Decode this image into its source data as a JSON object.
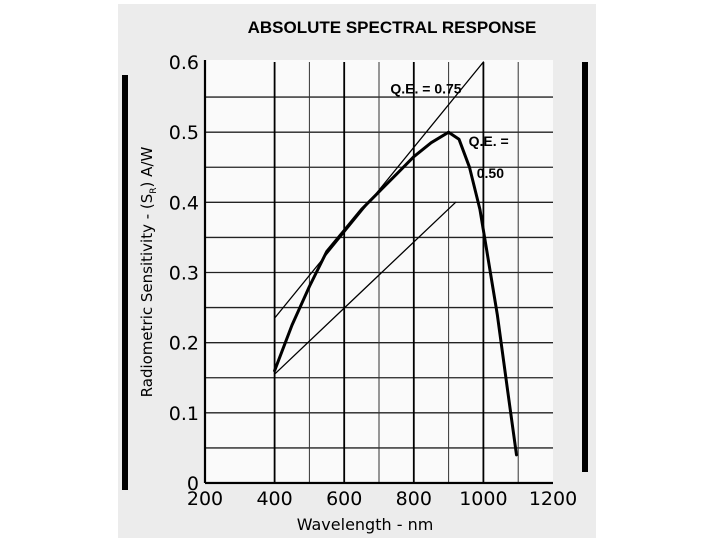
{
  "chart_data": {
    "type": "line",
    "title": "ABSOLUTE SPECTRAL RESPONSE",
    "xlabel": "Wavelength - nm",
    "ylabel": "Radiometric Sensitivity - (S",
    "ylabel_sub": "R",
    "ylabel_suffix": ") A/W",
    "xlim": [
      200,
      1200
    ],
    "ylim": [
      0,
      0.6
    ],
    "x_ticks": [
      "200",
      "400",
      "600",
      "800",
      "1000",
      "1200"
    ],
    "y_ticks": [
      "0",
      "0.1",
      "0.2",
      "0.3",
      "0.4",
      "0.5",
      "0.6"
    ],
    "grid": true,
    "series": [
      {
        "role": "response-curve",
        "x": [
          400,
          450,
          500,
          550,
          600,
          650,
          700,
          750,
          800,
          850,
          900,
          930,
          960,
          990,
          1010,
          1040,
          1070,
          1095
        ],
        "y": [
          0.16,
          0.225,
          0.28,
          0.33,
          0.36,
          0.39,
          0.415,
          0.44,
          0.465,
          0.485,
          0.5,
          0.49,
          0.45,
          0.39,
          0.33,
          0.24,
          0.13,
          0.04
        ]
      },
      {
        "role": "reference-line",
        "label": "Q.E. = 0.75",
        "x": [
          400,
          1000
        ],
        "y": [
          0.235,
          0.6
        ]
      },
      {
        "role": "reference-line",
        "label": "Q.E. = 0.50",
        "x": [
          400,
          920
        ],
        "y": [
          0.155,
          0.4
        ]
      }
    ],
    "annotations": [
      {
        "text": "Q.E. = 0.75",
        "x": 835,
        "y": 0.555
      },
      {
        "text": "Q.E. =",
        "x": 1015,
        "y": 0.48
      },
      {
        "text": "0.50",
        "x": 1020,
        "y": 0.435
      }
    ]
  }
}
